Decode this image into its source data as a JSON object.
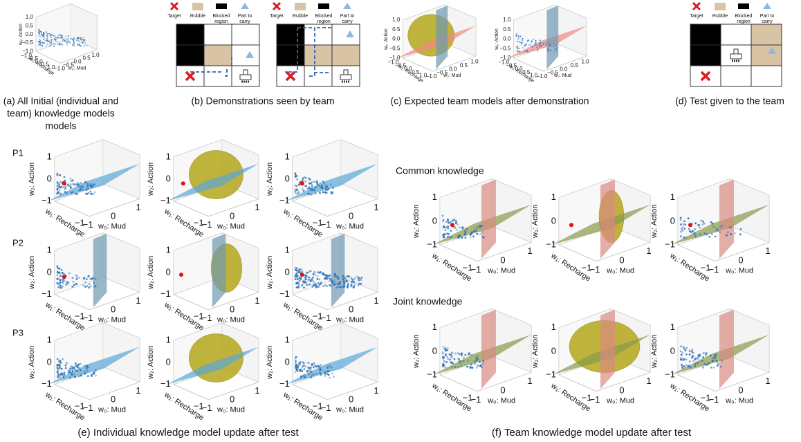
{
  "captions": {
    "a": [
      "(a) All Initial (individual and",
      "team) knowledge models",
      "models"
    ],
    "b": "(b) Demonstrations seen by team",
    "c": "(c) Expected team models after demonstration",
    "d": "(d) Test given to the team",
    "e": "(e) Individual knowledge model update after test",
    "f": "(f) Team knowledge model update after test"
  },
  "legend": [
    [
      "Target"
    ],
    [
      "Rubble"
    ],
    [
      "Blocked",
      "region"
    ],
    [
      "Part to",
      "carry"
    ]
  ],
  "rows": [
    "P1",
    "P2",
    "P3"
  ],
  "groups": [
    "Common knowledge",
    "Joint knowledge"
  ],
  "axes": {
    "x_label": "w₀: Mud",
    "y_label": "w₁: Recharge",
    "z_label": "w₂: Action",
    "large_z": [
      "1",
      "0",
      "−1"
    ],
    "large_x": [
      "−1",
      "0",
      "1"
    ],
    "large_y": [
      "−1"
    ],
    "small_z": [
      "1.0",
      "0.5",
      "0.0",
      "−0.5",
      "−1.0"
    ],
    "small_x": [
      "−1.0",
      "−0.5",
      "0.0",
      "0.5",
      "1.0"
    ],
    "small_y": [
      "−1.0",
      "−0.5",
      "0.0",
      "0.5",
      "1.0"
    ]
  }
}
